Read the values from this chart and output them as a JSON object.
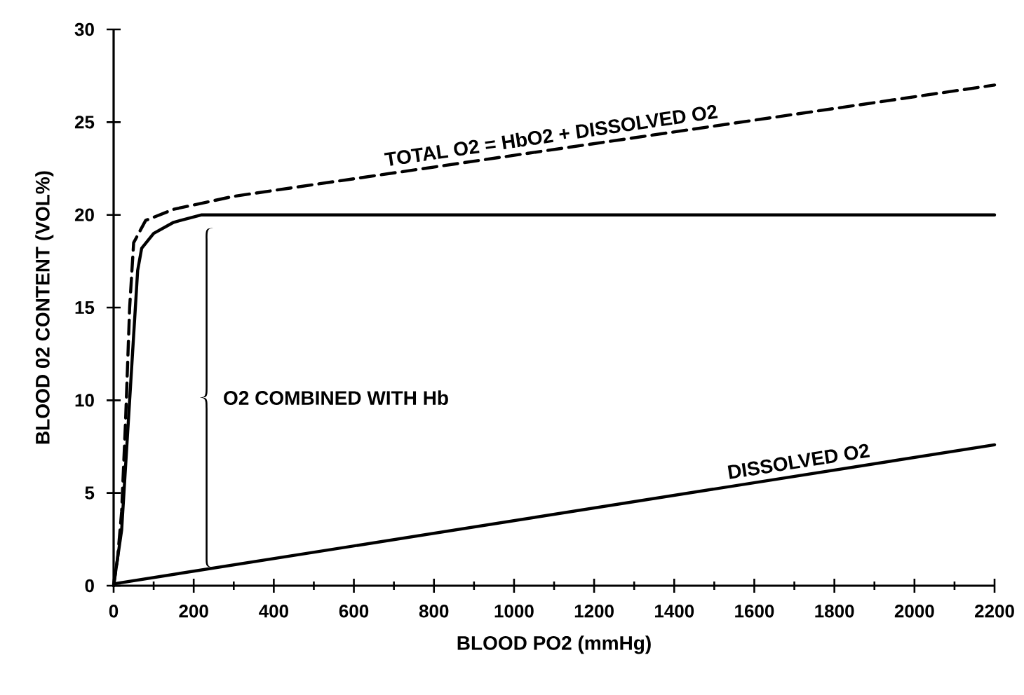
{
  "chart_data": {
    "type": "line",
    "xlabel": "BLOOD PO2 (mmHg)",
    "ylabel": "BLOOD 02 CONTENT (VOL%)",
    "xlim": [
      0,
      2200
    ],
    "ylim": [
      0,
      30
    ],
    "xticks": [
      0,
      200,
      400,
      600,
      800,
      1000,
      1200,
      1400,
      1600,
      1800,
      2000,
      2200
    ],
    "yticks": [
      0,
      5,
      10,
      15,
      20,
      25,
      30
    ],
    "grid": false,
    "legend": false,
    "marker": "none",
    "series": [
      {
        "name": "TOTAL O2 = HbO2 + DISSOLVED O2",
        "color": "#000000",
        "line_style": "dashed",
        "x": [
          0,
          10,
          20,
          30,
          40,
          50,
          80,
          150,
          300,
          2200
        ],
        "values": [
          0,
          1.5,
          4,
          9,
          15,
          18.5,
          19.7,
          20.3,
          21,
          27
        ]
      },
      {
        "color": "#000000",
        "line_style": "solid",
        "x": [
          0,
          20,
          40,
          60,
          70,
          100,
          150,
          220,
          2200
        ],
        "values": [
          0,
          3,
          10,
          17,
          18.2,
          19,
          19.6,
          20,
          20
        ]
      },
      {
        "name": "DISSOLVED O2",
        "color": "#000000",
        "line_style": "solid",
        "x": [
          0,
          2200
        ],
        "values": [
          0.1,
          7.6
        ]
      }
    ],
    "annotations": [
      "O2 COMBINED WITH Hb"
    ]
  }
}
